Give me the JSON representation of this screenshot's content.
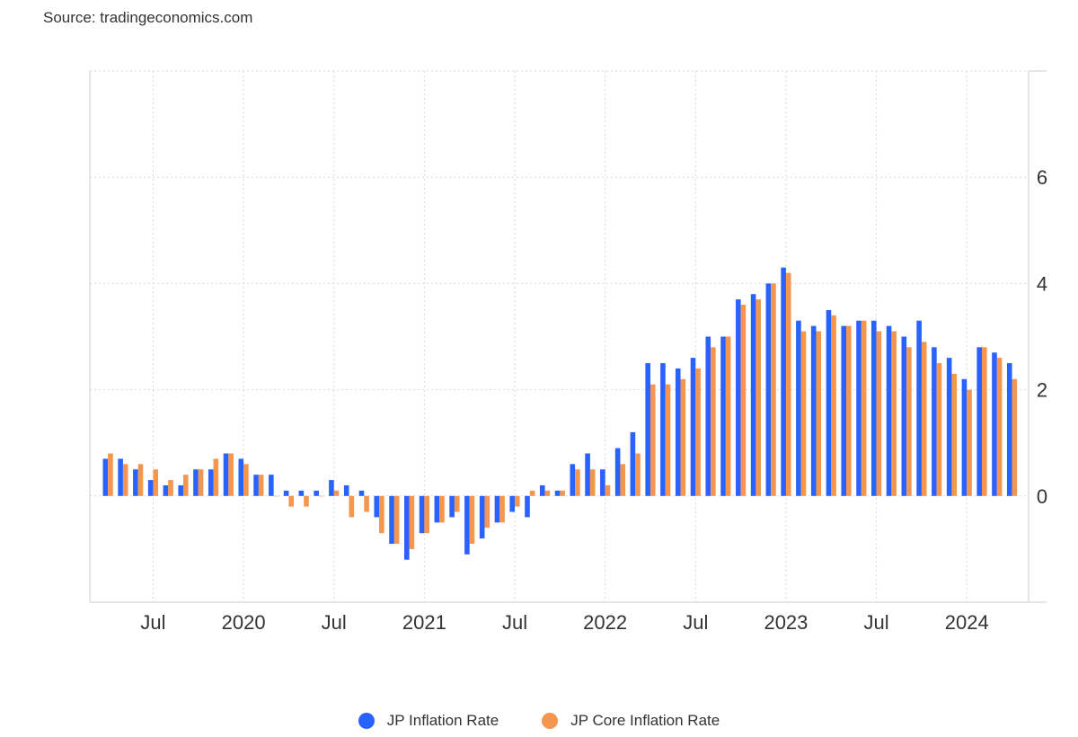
{
  "source_label": "Source: tradingeconomics.com",
  "colors": {
    "series1": "#2962ff",
    "series2": "#f5964f",
    "grid": "#d9d9d9",
    "axis": "#cccccc",
    "text": "#333333"
  },
  "legend": [
    {
      "label": "JP Inflation Rate"
    },
    {
      "label": "JP Core Inflation Rate"
    }
  ],
  "chart_data": {
    "type": "bar",
    "title": "",
    "xlabel": "",
    "ylabel": "",
    "ylim": [
      -2,
      8
    ],
    "yticks": [
      0,
      2,
      4,
      6
    ],
    "y_axis_side": "right",
    "grid": true,
    "legend_position": "bottom",
    "x_range": [
      "2019-04",
      "2024-04"
    ],
    "xticks": [
      {
        "label": "Jul",
        "at": "2019-07"
      },
      {
        "label": "2020",
        "at": "2020-01"
      },
      {
        "label": "Jul",
        "at": "2020-07"
      },
      {
        "label": "2021",
        "at": "2021-01"
      },
      {
        "label": "Jul",
        "at": "2021-07"
      },
      {
        "label": "2022",
        "at": "2022-01"
      },
      {
        "label": "Jul",
        "at": "2022-07"
      },
      {
        "label": "2023",
        "at": "2023-01"
      },
      {
        "label": "Jul",
        "at": "2023-07"
      },
      {
        "label": "2024",
        "at": "2024-01"
      }
    ],
    "categories": [
      "2019-04",
      "2019-05",
      "2019-06",
      "2019-07",
      "2019-08",
      "2019-09",
      "2019-10",
      "2019-11",
      "2019-12",
      "2020-01",
      "2020-02",
      "2020-03",
      "2020-04",
      "2020-05",
      "2020-06",
      "2020-07",
      "2020-08",
      "2020-09",
      "2020-10",
      "2020-11",
      "2020-12",
      "2021-01",
      "2021-02",
      "2021-03",
      "2021-04",
      "2021-05",
      "2021-06",
      "2021-07",
      "2021-08",
      "2021-09",
      "2021-10",
      "2021-11",
      "2021-12",
      "2022-01",
      "2022-02",
      "2022-03",
      "2022-04",
      "2022-05",
      "2022-06",
      "2022-07",
      "2022-08",
      "2022-09",
      "2022-10",
      "2022-11",
      "2022-12",
      "2023-01",
      "2023-02",
      "2023-03",
      "2023-04",
      "2023-05",
      "2023-06",
      "2023-07",
      "2023-08",
      "2023-09",
      "2023-10",
      "2023-11",
      "2023-12",
      "2024-01",
      "2024-02",
      "2024-03",
      "2024-04"
    ],
    "series": [
      {
        "name": "JP Inflation Rate",
        "values": [
          0.7,
          0.7,
          0.5,
          0.3,
          0.2,
          0.2,
          0.5,
          0.5,
          0.8,
          0.7,
          0.4,
          0.4,
          0.1,
          0.1,
          0.1,
          0.3,
          0.2,
          0.1,
          -0.4,
          -0.9,
          -1.2,
          -0.7,
          -0.5,
          -0.4,
          -1.1,
          -0.8,
          -0.5,
          -0.3,
          -0.4,
          0.2,
          0.1,
          0.6,
          0.8,
          0.5,
          0.9,
          1.2,
          2.5,
          2.5,
          2.4,
          2.6,
          3.0,
          3.0,
          3.7,
          3.8,
          4.0,
          4.3,
          3.3,
          3.2,
          3.5,
          3.2,
          3.3,
          3.3,
          3.2,
          3.0,
          3.3,
          2.8,
          2.6,
          2.2,
          2.8,
          2.7,
          2.5
        ]
      },
      {
        "name": "JP Core Inflation Rate",
        "values": [
          0.8,
          0.6,
          0.6,
          0.5,
          0.3,
          0.4,
          0.5,
          0.7,
          0.8,
          0.6,
          0.4,
          0.0,
          -0.2,
          -0.2,
          0.0,
          0.1,
          -0.4,
          -0.3,
          -0.7,
          -0.9,
          -1.0,
          -0.7,
          -0.5,
          -0.3,
          -0.9,
          -0.6,
          -0.5,
          -0.2,
          0.1,
          0.1,
          0.1,
          0.5,
          0.5,
          0.2,
          0.6,
          0.8,
          2.1,
          2.1,
          2.2,
          2.4,
          2.8,
          3.0,
          3.6,
          3.7,
          4.0,
          4.2,
          3.1,
          3.1,
          3.4,
          3.2,
          3.3,
          3.1,
          3.1,
          2.8,
          2.9,
          2.5,
          2.3,
          2.0,
          2.8,
          2.6,
          2.2
        ]
      }
    ]
  }
}
